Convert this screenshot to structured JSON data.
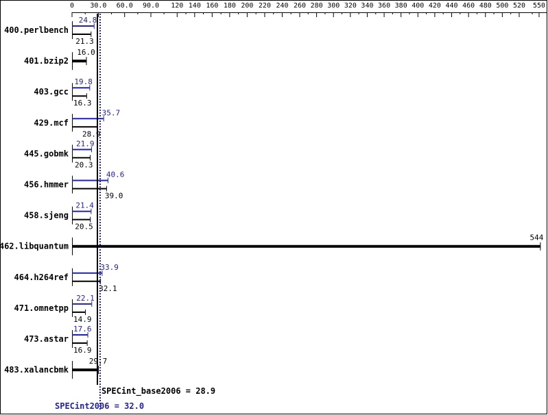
{
  "chart_data": {
    "type": "bar",
    "orientation": "horizontal",
    "title": "",
    "xlabel": "",
    "ylabel": "",
    "xlim": [
      0,
      550
    ],
    "x_ticks": [
      "0",
      "30.0",
      "60.0",
      "90.0",
      "120",
      "140",
      "160",
      "180",
      "200",
      "220",
      "240",
      "260",
      "280",
      "300",
      "320",
      "340",
      "360",
      "380",
      "400",
      "420",
      "440",
      "460",
      "480",
      "500",
      "520",
      "550"
    ],
    "categories": [
      "400.perlbench",
      "401.bzip2",
      "403.gcc",
      "429.mcf",
      "445.gobmk",
      "456.hmmer",
      "458.sjeng",
      "462.libquantum",
      "464.h264ref",
      "471.omnetpp",
      "473.astar",
      "483.xalancbmk"
    ],
    "series": [
      {
        "key": "peak",
        "color": "#2020b0",
        "values": [
          24.8,
          null,
          19.8,
          35.7,
          21.9,
          40.6,
          21.4,
          null,
          33.9,
          22.1,
          17.6,
          null
        ]
      },
      {
        "key": "base",
        "color": "#000000",
        "values": [
          21.3,
          16.0,
          16.3,
          28.9,
          20.3,
          39.0,
          20.5,
          544,
          32.1,
          14.9,
          16.9,
          29.7
        ]
      }
    ],
    "value_labels": {
      "peak": [
        "24.8",
        "",
        "19.8",
        "35.7",
        "21.9",
        "40.6",
        "21.4",
        "",
        "33.9",
        "22.1",
        "17.6",
        ""
      ],
      "base": [
        "21.3",
        "16.0",
        "16.3",
        "28.9",
        "20.3",
        "39.0",
        "20.5",
        "544",
        "32.1",
        "14.9",
        "16.9",
        "29.7"
      ]
    },
    "reference_lines": [
      {
        "key": "base_mean",
        "value": 28.9,
        "label": "SPECint_base2006 = 28.9",
        "color": "#000000",
        "style": "solid"
      },
      {
        "key": "peak_mean",
        "value": 32.0,
        "label": "SPECint2006 = 32.0",
        "color": "#2020b0",
        "style": "dotted"
      }
    ],
    "grid": false
  }
}
